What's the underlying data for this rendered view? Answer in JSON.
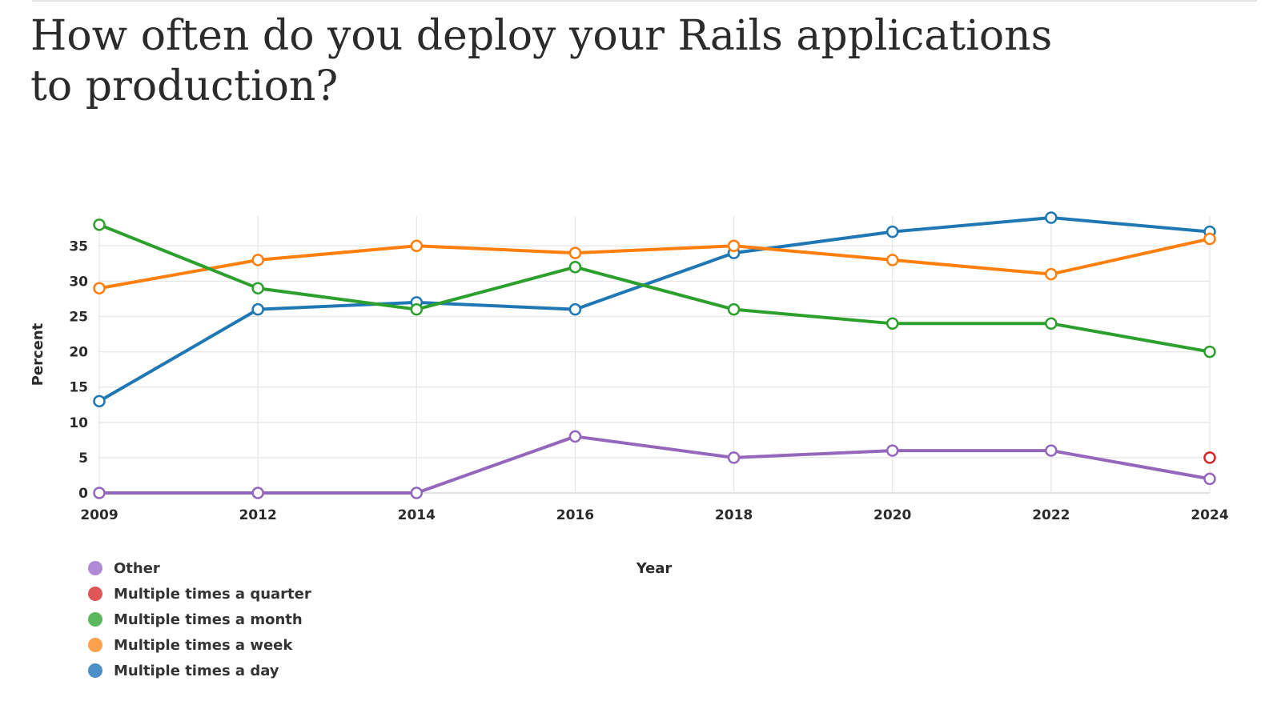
{
  "title": "How often do you deploy your Rails applications to production?",
  "chart_data": {
    "type": "line",
    "title": "How often do you deploy your Rails applications to production?",
    "xlabel": "Year",
    "ylabel": "Percent",
    "x": [
      "2009",
      "2012",
      "2014",
      "2016",
      "2018",
      "2020",
      "2022",
      "2024"
    ],
    "x_scale": "categorical",
    "ylim": [
      0,
      39
    ],
    "yticks": [
      "0",
      "5",
      "10",
      "15",
      "20",
      "25",
      "30",
      "35"
    ],
    "grid": true,
    "legend_position": "bottom-left",
    "series": [
      {
        "name": "Multiple times a day",
        "color": "#1f77b4",
        "values": [
          13,
          26,
          27,
          26,
          34,
          37,
          39,
          37
        ]
      },
      {
        "name": "Multiple times a week",
        "color": "#ff7f0e",
        "values": [
          29,
          33,
          35,
          34,
          35,
          33,
          31,
          36
        ]
      },
      {
        "name": "Multiple times a month",
        "color": "#2ca02c",
        "values": [
          38,
          29,
          26,
          32,
          26,
          24,
          24,
          20
        ]
      },
      {
        "name": "Multiple times a quarter",
        "color": "#d62728",
        "values": [
          null,
          null,
          null,
          null,
          null,
          null,
          null,
          5
        ]
      },
      {
        "name": "Other",
        "color": "#9467bd",
        "values": [
          0,
          0,
          0,
          8,
          5,
          6,
          6,
          2
        ]
      }
    ],
    "legend": [
      {
        "label": "Other",
        "color": "#b08ad6"
      },
      {
        "label": "Multiple times a quarter",
        "color": "#e05557"
      },
      {
        "label": "Multiple times a month",
        "color": "#5cb85c"
      },
      {
        "label": "Multiple times a week",
        "color": "#ffa04d"
      },
      {
        "label": "Multiple times a day",
        "color": "#4b8fc6"
      }
    ]
  }
}
